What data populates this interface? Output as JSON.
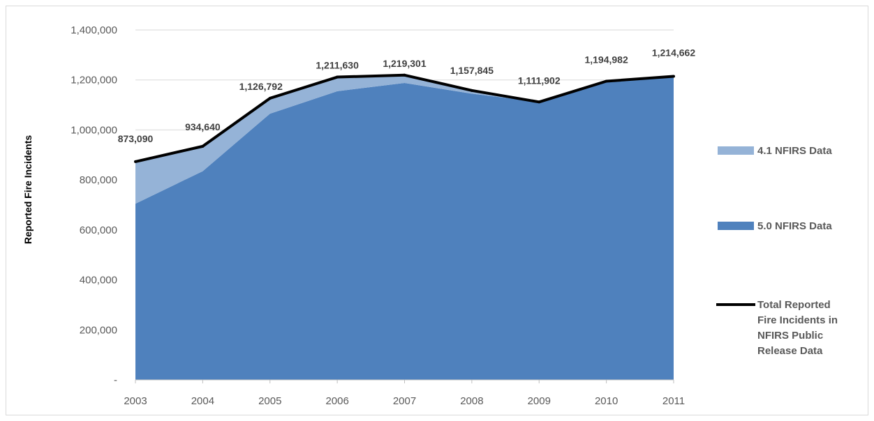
{
  "chart_data": {
    "type": "area",
    "title": "",
    "ylabel": "Reported Fire Incidents",
    "xlabel": "",
    "x": [
      "2003",
      "2004",
      "2005",
      "2006",
      "2007",
      "2008",
      "2009",
      "2010",
      "2011"
    ],
    "ylim": [
      0,
      1400000
    ],
    "yticks": [
      {
        "value": 0,
        "label": "-"
      },
      {
        "value": 200000,
        "label": "200,000"
      },
      {
        "value": 400000,
        "label": "400,000"
      },
      {
        "value": 600000,
        "label": "600,000"
      },
      {
        "value": 800000,
        "label": "800,000"
      },
      {
        "value": 1000000,
        "label": "1,000,000"
      },
      {
        "value": 1200000,
        "label": "1,200,000"
      },
      {
        "value": 1400000,
        "label": "1,400,000"
      }
    ],
    "grid": true,
    "legend_position": "right",
    "stacked": true,
    "series": [
      {
        "name": "5.0 NFIRS Data",
        "kind": "area",
        "color": "#4f81bd",
        "values": [
          705000,
          835000,
          1065000,
          1155000,
          1188000,
          1145000,
          1111902,
          1190000,
          1210000
        ]
      },
      {
        "name": "4.1 NFIRS Data",
        "kind": "area",
        "color": "#95b3d7",
        "values": [
          168090,
          99640,
          61792,
          56630,
          31301,
          12845,
          0,
          4982,
          4662
        ]
      },
      {
        "name": "Total Reported Fire Incidents in NFIRS Public Release Data",
        "kind": "line",
        "color": "#000000",
        "values": [
          873090,
          934640,
          1126792,
          1211630,
          1219301,
          1157845,
          1111902,
          1194982,
          1214662
        ]
      }
    ],
    "data_labels": [
      "873,090",
      "934,640",
      "1,126,792",
      "1,211,630",
      "1,219,301",
      "1,157,845",
      "1,111,902",
      "1,194,982",
      "1,214,662"
    ]
  }
}
